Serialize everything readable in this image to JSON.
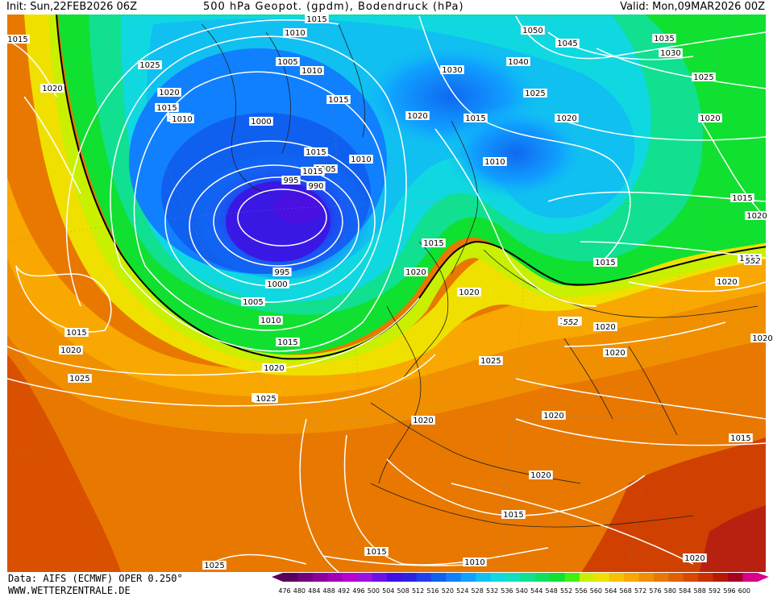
{
  "header": {
    "init": "Init: Sun,22FEB2026 06Z",
    "title": "500 hPa Geopot. (gpdm), Bodendruck (hPa)",
    "valid": "Valid: Mon,09MAR2026 00Z"
  },
  "footer": {
    "source": "Data: AIFS (ECMWF) OPER 0.250°",
    "website": "WWW.WETTERZENTRALE.DE"
  },
  "legend": {
    "values": [
      "476",
      "480",
      "484",
      "488",
      "492",
      "496",
      "500",
      "504",
      "508",
      "512",
      "516",
      "520",
      "524",
      "528",
      "532",
      "536",
      "540",
      "544",
      "548",
      "552",
      "556",
      "560",
      "564",
      "568",
      "572",
      "576",
      "580",
      "584",
      "588",
      "592",
      "596",
      "600"
    ],
    "colors": [
      "#5a005a",
      "#74007e",
      "#8c009c",
      "#a400b8",
      "#b800cf",
      "#a010e0",
      "#7010e8",
      "#4010e6",
      "#3020e0",
      "#2040f0",
      "#1060f0",
      "#1080ff",
      "#10a0ff",
      "#10c0f0",
      "#10d8e0",
      "#10e0c0",
      "#10e090",
      "#10e060",
      "#10e030",
      "#40f010",
      "#c8f000",
      "#f0e000",
      "#f8c000",
      "#f8a800",
      "#f09000",
      "#e87800",
      "#e06000",
      "#d84800",
      "#c83000",
      "#b81800",
      "#a80020",
      "#d8008c"
    ]
  },
  "isobar_labels": [
    "1015",
    "1015",
    "1010",
    "1010",
    "1005",
    "1010",
    "1025",
    "1020",
    "1020",
    "1015",
    "1010",
    "1015",
    "1000",
    "1015",
    "1005",
    "1010",
    "1015",
    "995",
    "990",
    "995",
    "1000",
    "1005",
    "1010",
    "1015",
    "1020",
    "1025",
    "1020",
    "1015",
    "1020",
    "1025",
    "1025",
    "1050",
    "1045",
    "1035",
    "1030",
    "1040",
    "1030",
    "1025",
    "1025",
    "1020",
    "1015",
    "1020",
    "1010",
    "1020",
    "1015",
    "1020",
    "1015",
    "1020",
    "1015",
    "1020",
    "1025",
    "1020",
    "1025",
    "1020",
    "1020",
    "1020",
    "1020",
    "1015",
    "1015",
    "1010",
    "1020",
    "1015",
    "1020",
    "1015",
    "1015"
  ],
  "height_labels": [
    "552",
    "552"
  ]
}
